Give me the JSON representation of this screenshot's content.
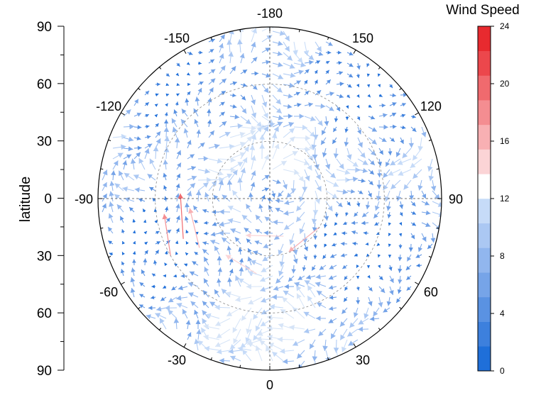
{
  "chart_data": {
    "type": "polar-vector-field",
    "title": "",
    "ylabel": "latitude",
    "y_axis": {
      "ticks": [
        {
          "label": "90",
          "value": 90
        },
        {
          "label": "60",
          "value": 60
        },
        {
          "label": "30",
          "value": 30
        },
        {
          "label": "0",
          "value": 0
        },
        {
          "label": "30",
          "value": -30
        },
        {
          "label": "60",
          "value": -60
        },
        {
          "label": "90",
          "value": -90
        }
      ],
      "range": [
        -90,
        90
      ]
    },
    "longitude_labels": [
      {
        "label": "-180",
        "angle": 180
      },
      {
        "label": "150",
        "angle": 150
      },
      {
        "label": "120",
        "angle": 120
      },
      {
        "label": "90",
        "angle": 90
      },
      {
        "label": "60",
        "angle": 60
      },
      {
        "label": "30",
        "angle": 30
      },
      {
        "label": "0",
        "angle": 0
      },
      {
        "label": "-30",
        "angle": -30
      },
      {
        "label": "-60",
        "angle": -60
      },
      {
        "label": "-90",
        "angle": -90
      },
      {
        "label": "-120",
        "angle": -120
      },
      {
        "label": "-150",
        "angle": -150
      }
    ],
    "grid_circles_latitude": [
      30,
      60
    ],
    "colorbar": {
      "title": "Wind Speed",
      "range": [
        0,
        24
      ],
      "step": 2,
      "tick_labels": [
        "0",
        "4",
        "8",
        "12",
        "16",
        "20",
        "24"
      ],
      "colors": [
        "#1f6fd9",
        "#3d80dd",
        "#5a92e2",
        "#76a4e8",
        "#91b6ee",
        "#abc8f3",
        "#c6dbf8",
        "#ffffff",
        "#fbd4d6",
        "#f8b0b3",
        "#f48d91",
        "#f06a6e",
        "#ec474c",
        "#e82a2f"
      ]
    },
    "vectors_note_removed": true,
    "highlight_vectors": [
      {
        "lon": -60,
        "lat_from": -30,
        "speed": 18
      },
      {
        "lon": -65,
        "lat_from": -40,
        "speed": 20
      },
      {
        "lon": -55,
        "lat_from": -45,
        "speed": 17
      },
      {
        "lon": -120,
        "lat_from": 40,
        "speed": 16
      },
      {
        "lon": -160,
        "lat_from": 55,
        "speed": 15
      },
      {
        "lon": -10,
        "lat_from": -50,
        "speed": 14
      }
    ]
  }
}
